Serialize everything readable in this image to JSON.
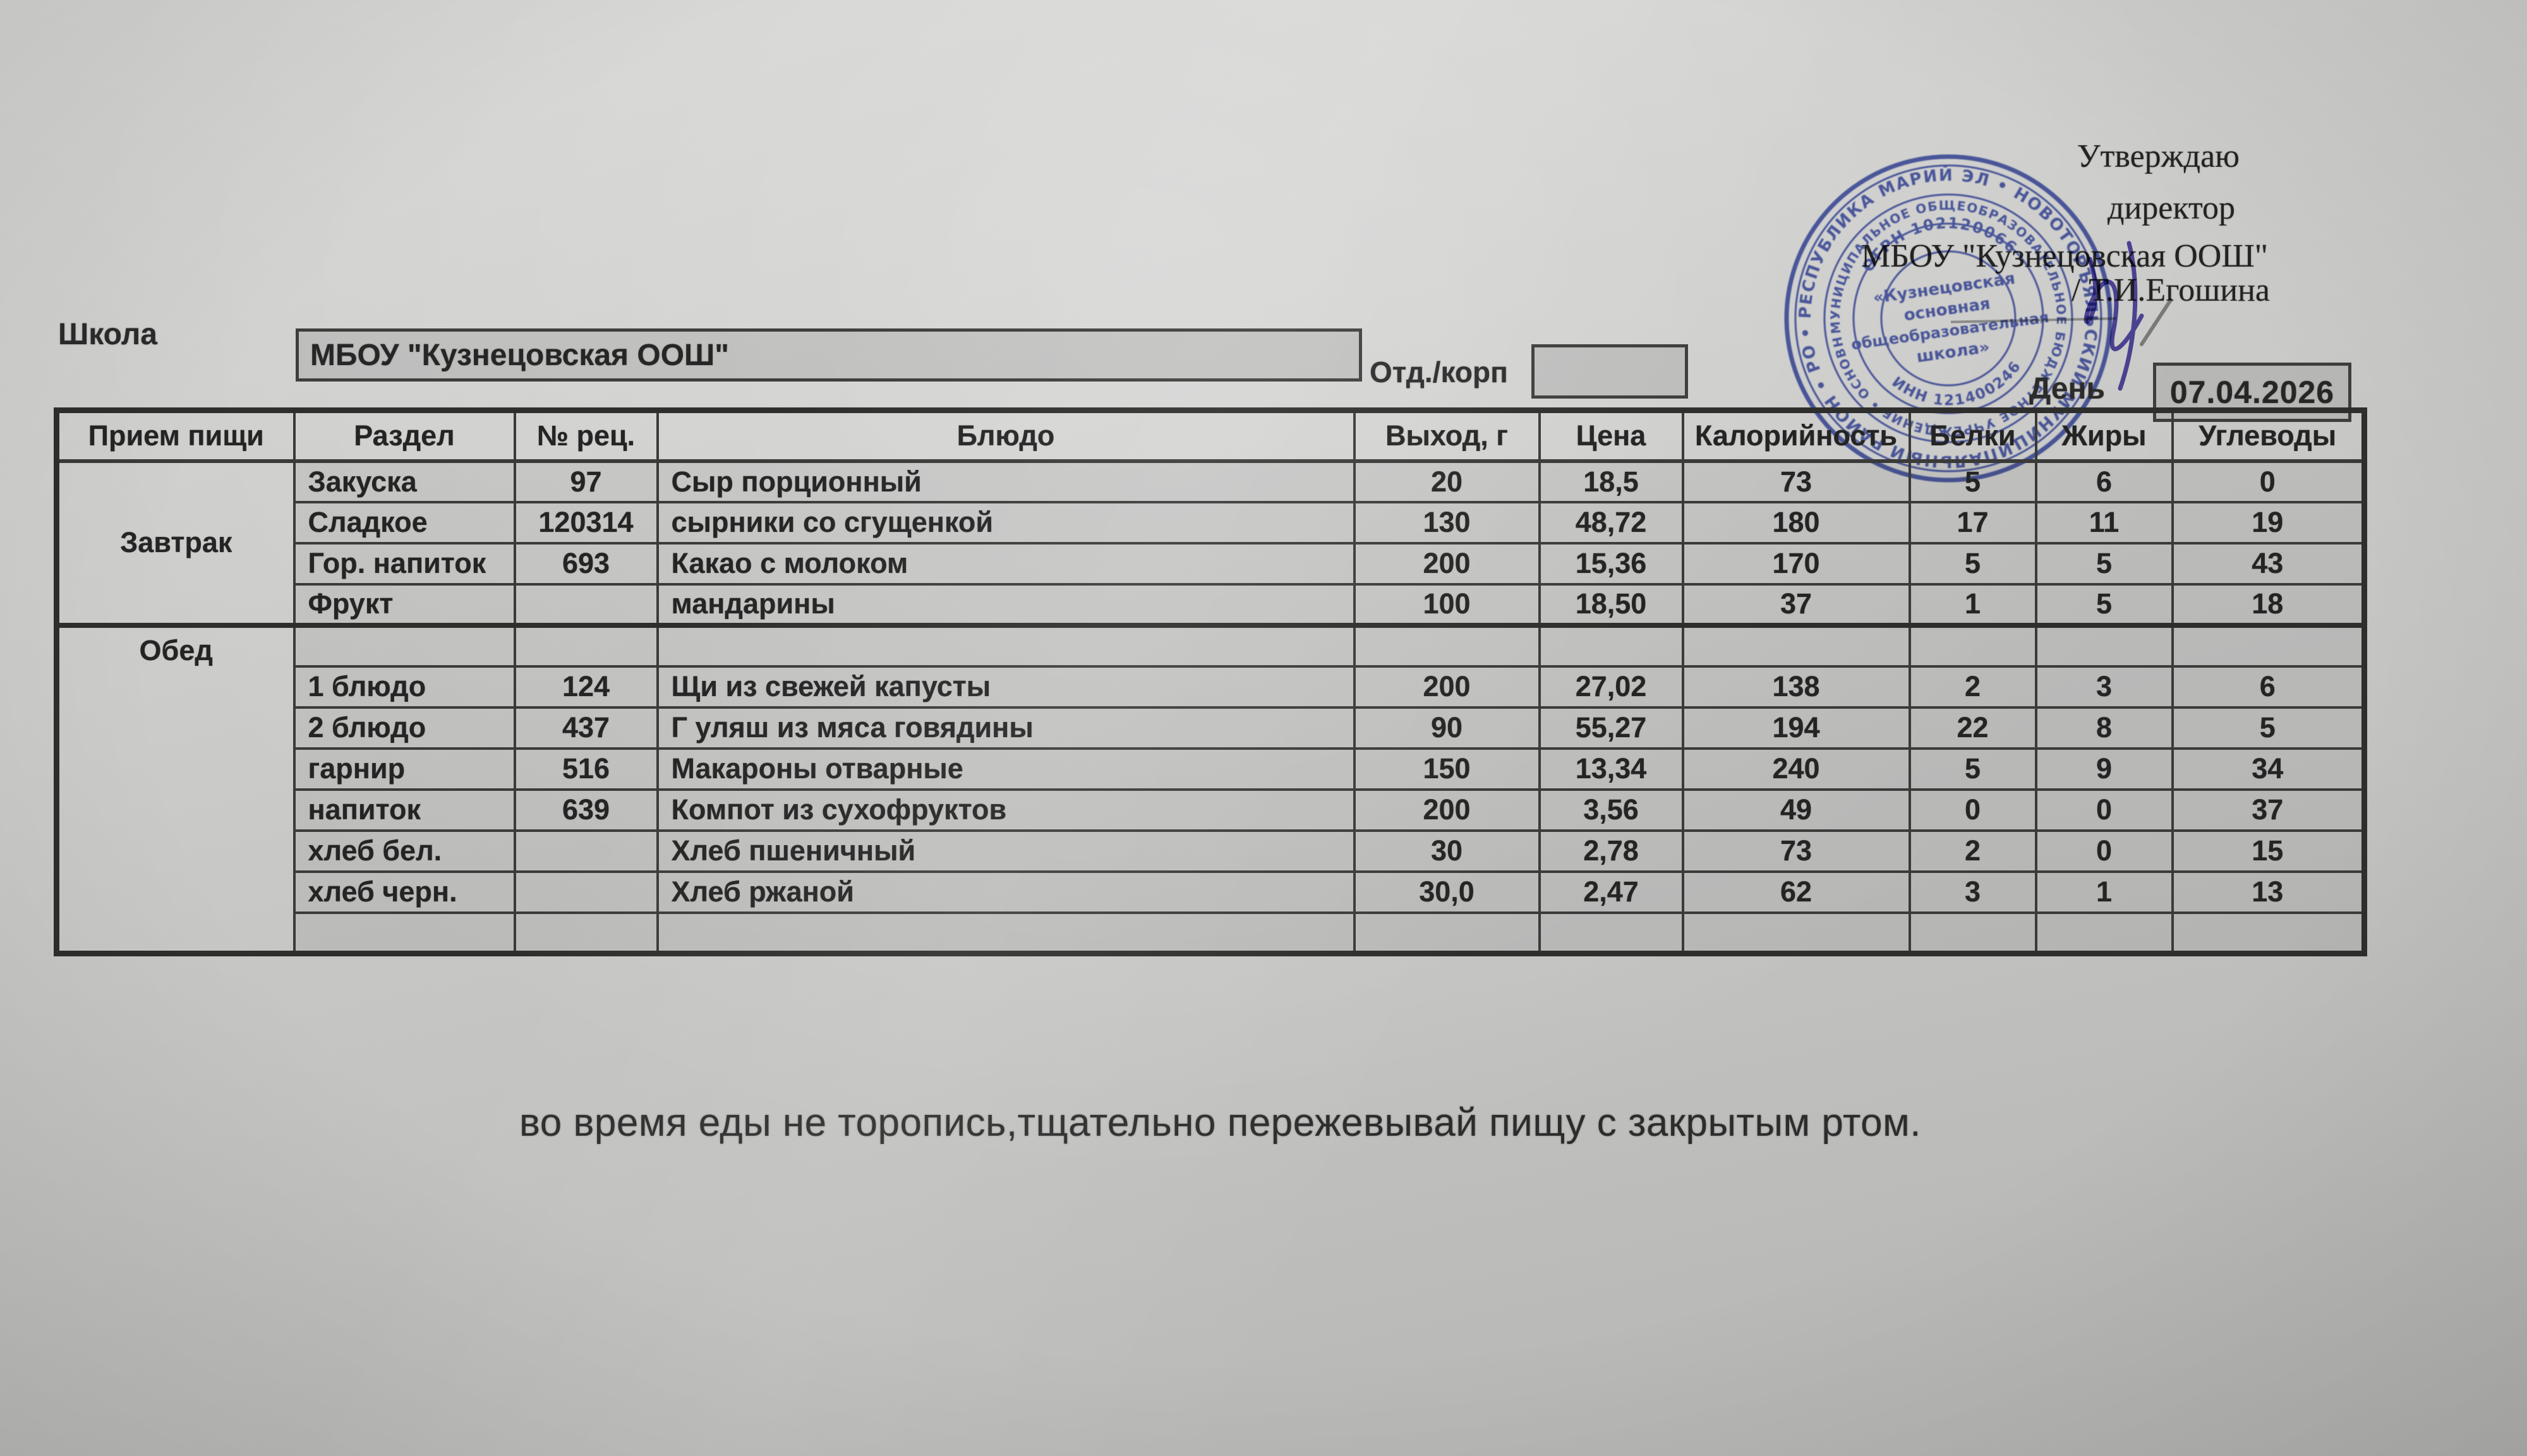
{
  "page": {
    "approval": {
      "line1": "Утверждаю",
      "line2": "директор",
      "line3": "МБОУ \"Кузнецовская ООШ\"",
      "line4": "/ Т.И.Егошина"
    },
    "school_label": "Школа",
    "school_name": "МБОУ \"Кузнецовская ООШ\"",
    "dept_label": "Отд./корп",
    "dept_value": "",
    "day_label": "День",
    "date_value": "07.04.2026",
    "footer_note": "во время еды не торопись,тщательно пережевывай пищу с закрытым ртом."
  },
  "stamp": {
    "color": "#3a4cb1",
    "ring_outer": "• РЕСПУБЛИКА МАРИЙ ЭЛ • НОВОТОРЪЯЛЬСКИЙ МУНИЦИПАЛЬНЫЙ РАЙОН • РОССИЙСКАЯ ФЕДЕРАЦИЯ ",
    "ring_middle": "МУНИЦИПАЛЬНОЕ ОБЩЕОБРАЗОВАТЕЛЬНОЕ БЮДЖЕТНОЕ УЧРЕЖДЕНИЕ • ОСНОВНЫХ ОБЩЕОБРАЗОВАТЕЛЬНЫХ ШКОЛ ",
    "ogrn": "ОГРН 1021200663518",
    "inn": "ИНН 1214002467",
    "center_lines": [
      "«Кузнецовская",
      "основная",
      "общеобразовательная",
      "школа»"
    ]
  },
  "table": {
    "headers": [
      "Прием пищи",
      "Раздел",
      "№ рец.",
      "Блюдо",
      "Выход, г",
      "Цена",
      "Калорийность",
      "Белки",
      "Жиры",
      "Углеводы"
    ],
    "sections": [
      {
        "meal": "Завтрак",
        "rows": [
          [
            "Закуска",
            "97",
            "Сыр порционный",
            "20",
            "18,5",
            "73",
            "5",
            "6",
            "0"
          ],
          [
            "Сладкое",
            "120314",
            "сырники со сгущенкой",
            "130",
            "48,72",
            "180",
            "17",
            "11",
            "19"
          ],
          [
            "Гор. напиток",
            "693",
            "Какао с молоком",
            "200",
            "15,36",
            "170",
            "5",
            "5",
            "43"
          ],
          [
            "Фрукт",
            "",
            "мандарины",
            "100",
            "18,50",
            "37",
            "1",
            "5",
            "18"
          ]
        ]
      },
      {
        "meal": "Обед",
        "rows": [
          [
            "",
            "",
            "",
            "",
            "",
            "",
            "",
            "",
            ""
          ],
          [
            "1 блюдо",
            "124",
            "Щи из свежей капусты",
            "200",
            "27,02",
            "138",
            "2",
            "3",
            "6"
          ],
          [
            "2 блюдо",
            "437",
            "Г уляш из мяса говядины",
            "90",
            "55,27",
            "194",
            "22",
            "8",
            "5"
          ],
          [
            "гарнир",
            "516",
            "Макароны отварные",
            "150",
            "13,34",
            "240",
            "5",
            "9",
            "34"
          ],
          [
            "напиток",
            "639",
            "Компот из сухофруктов",
            "200",
            "3,56",
            "49",
            "0",
            "0",
            "37"
          ],
          [
            "хлеб бел.",
            "",
            "Хлеб пшеничный",
            "30",
            "2,78",
            "73",
            "2",
            "0",
            "15"
          ],
          [
            "хлеб черн.",
            "",
            "Хлеб ржаной",
            "30,0",
            "2,47",
            "62",
            "3",
            "1",
            "13"
          ],
          [
            "",
            "",
            "",
            "",
            "",
            "",
            "",
            "",
            ""
          ]
        ]
      }
    ]
  }
}
